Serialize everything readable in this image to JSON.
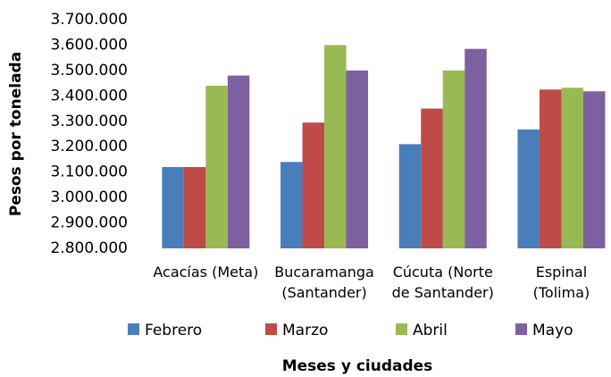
{
  "chart_data": {
    "type": "bar",
    "y_label": "Pesos por tonelada",
    "x_label": "Meses y ciudades",
    "categories": [
      "Acacías (Meta)",
      "Bucaramanga\n(Santander)",
      "Cúcuta (Norte\nde Santander)",
      "Espinal\n(Tolima)"
    ],
    "series": [
      {
        "name": "Febrero",
        "color": "#4a7ebb",
        "values": [
          3120000,
          3140000,
          3210000,
          3268000
        ]
      },
      {
        "name": "Marzo",
        "color": "#be4b48",
        "values": [
          3120000,
          3295000,
          3350000,
          3425000
        ]
      },
      {
        "name": "Abril",
        "color": "#98b954",
        "values": [
          3440000,
          3600000,
          3500000,
          3432000
        ]
      },
      {
        "name": "Mayo",
        "color": "#7d60a0",
        "values": [
          3480000,
          3500000,
          3585000,
          3418000
        ]
      }
    ],
    "ylim": [
      2800000,
      3700000
    ],
    "yticks": [
      {
        "value": 2800000,
        "label": "2.800.000"
      },
      {
        "value": 2900000,
        "label": "2.900.000"
      },
      {
        "value": 3000000,
        "label": "3.000.000"
      },
      {
        "value": 3100000,
        "label": "3.100.000"
      },
      {
        "value": 3200000,
        "label": "3.200.000"
      },
      {
        "value": 3300000,
        "label": "3.300.000"
      },
      {
        "value": 3400000,
        "label": "3.400.000"
      },
      {
        "value": 3500000,
        "label": "3.500.000"
      },
      {
        "value": 3600000,
        "label": "3.600.000"
      },
      {
        "value": 3700000,
        "label": "3.700.000"
      }
    ],
    "grid": false,
    "legend": "bottom"
  }
}
